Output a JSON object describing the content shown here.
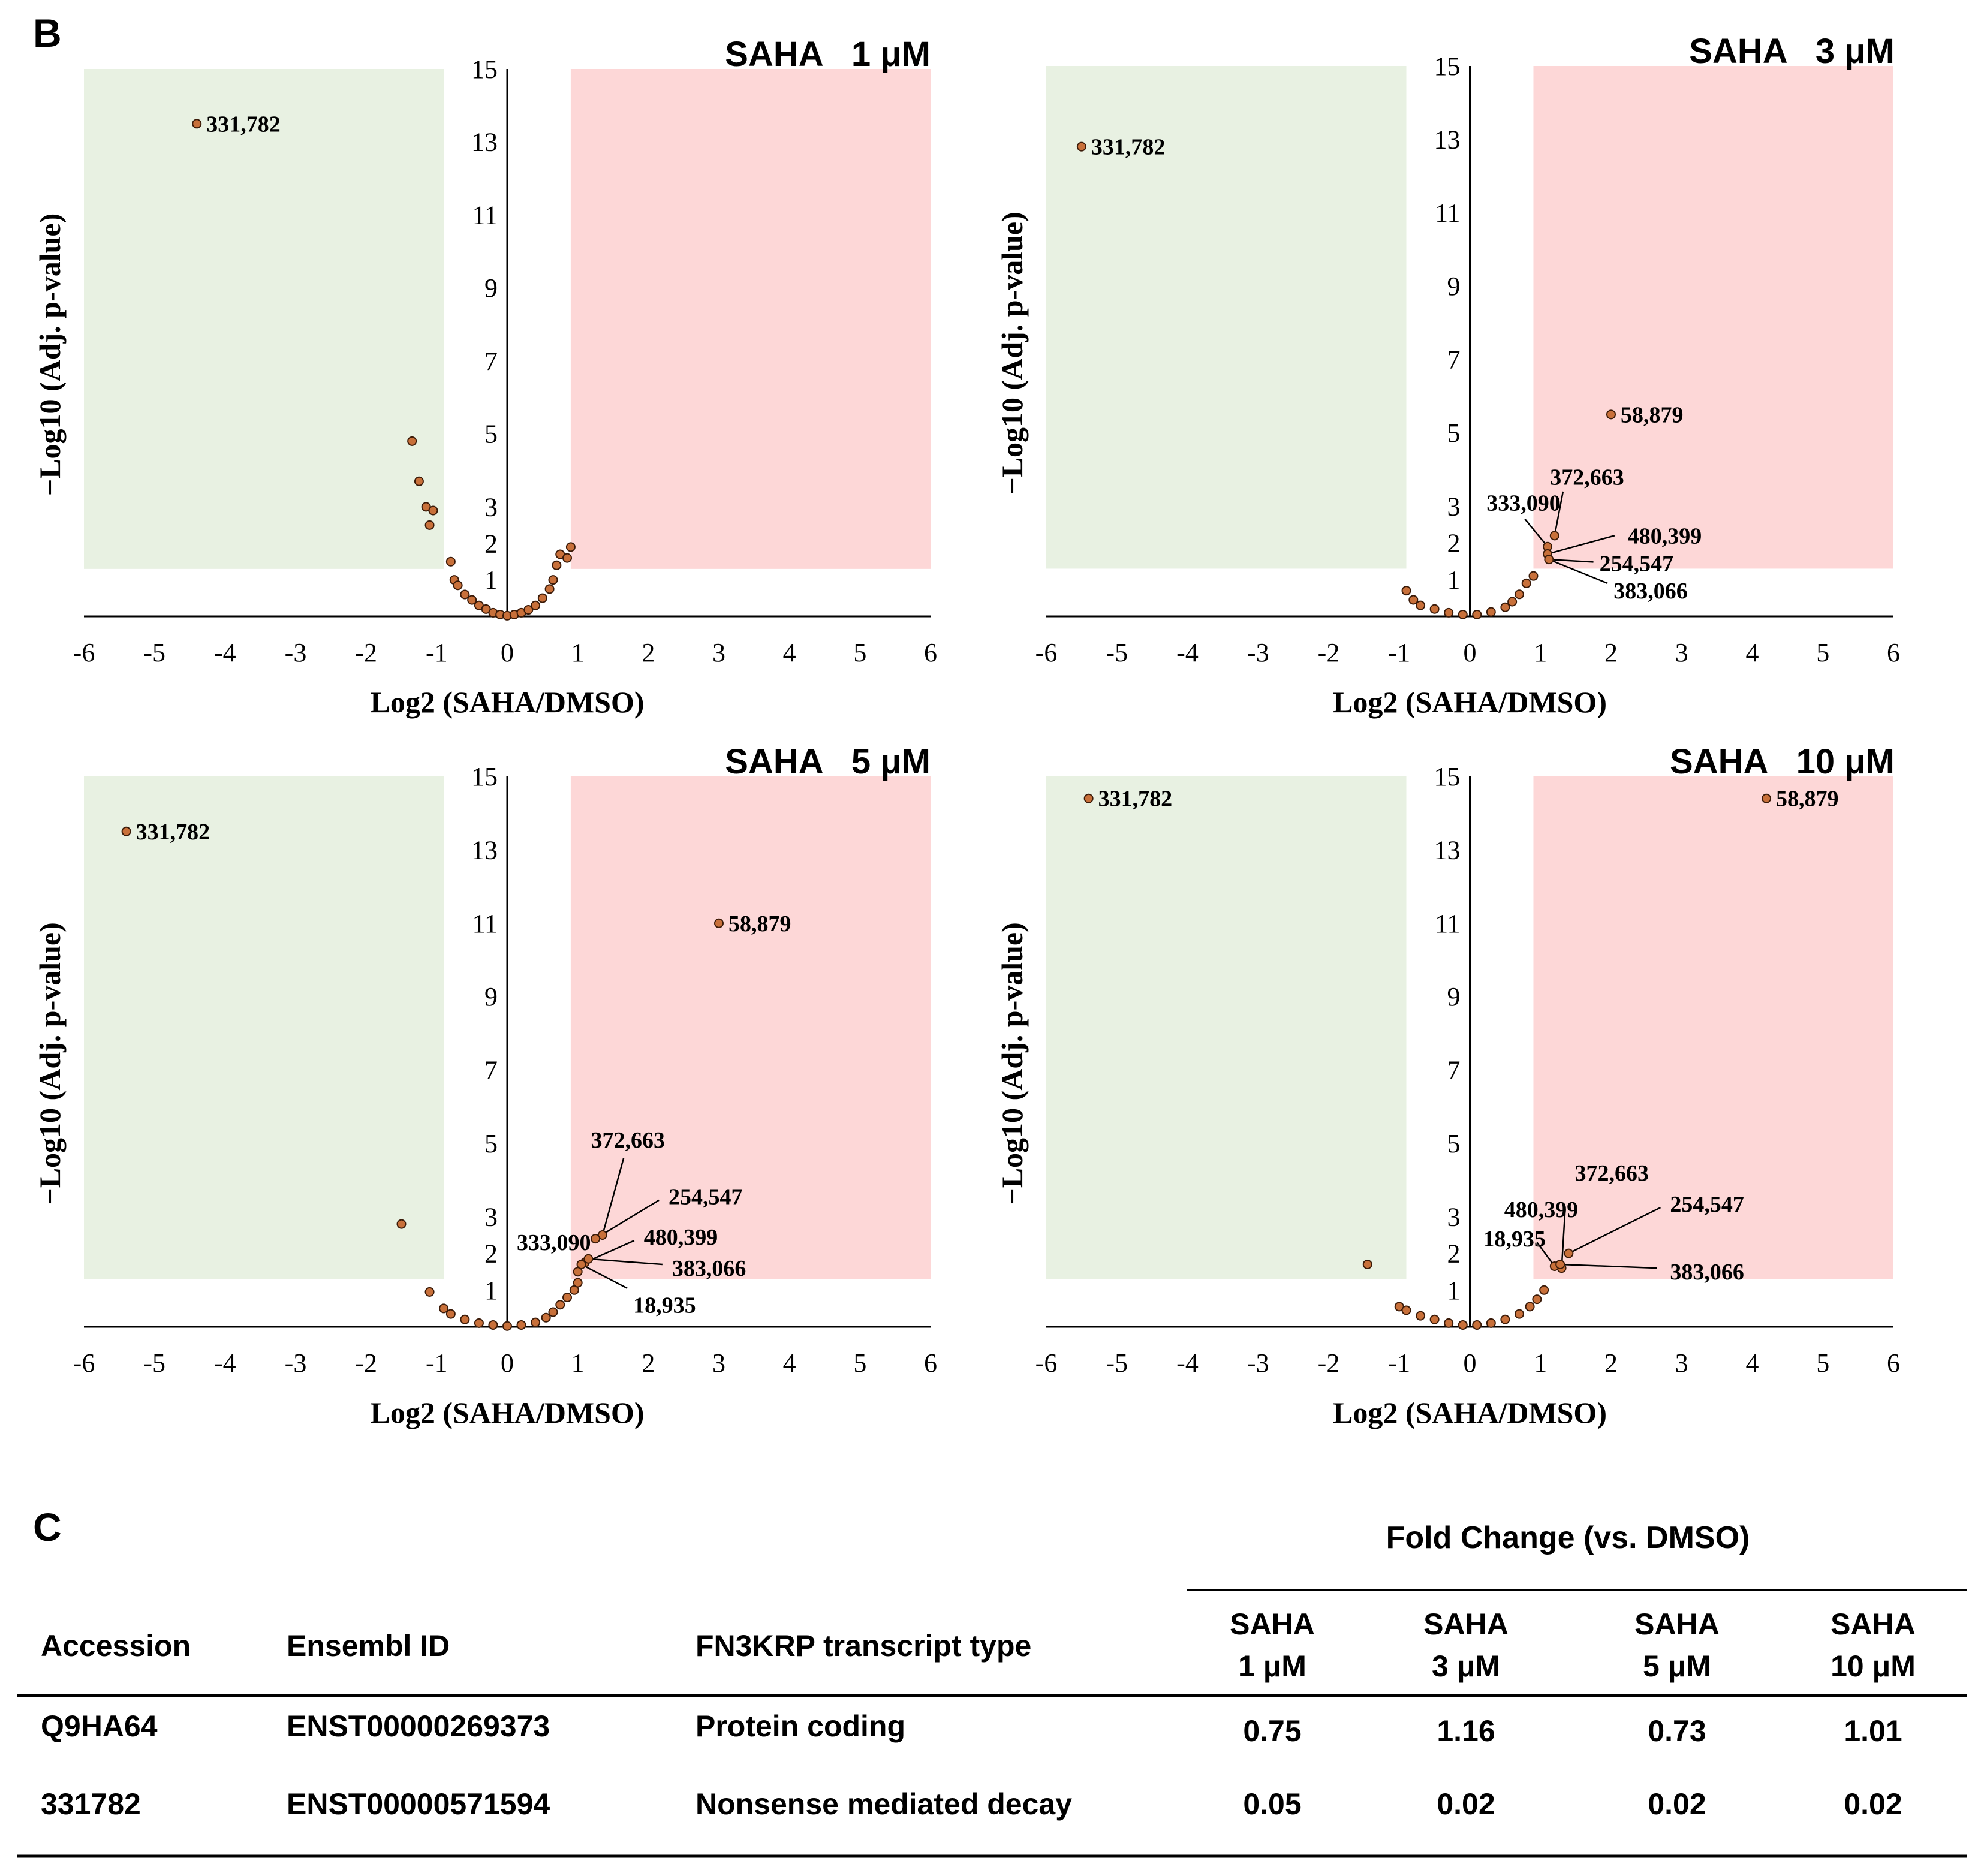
{
  "panel_b_label": "B",
  "panel_c_label": "C",
  "colors": {
    "down_region": "#e8f1e2",
    "up_region": "#fdd7d7",
    "point_fill": "#c8703a",
    "point_stroke": "#3a1a08",
    "axis": "#000000"
  },
  "chart_data": [
    {
      "type": "scatter",
      "title": "SAHA   1 μM",
      "xlabel": "Log2 (SAHA/DMSO)",
      "ylabel": "−Log10 (Adj. p-value)",
      "xlim": [
        -6,
        6
      ],
      "ylim": [
        0,
        15
      ],
      "xticks": [
        "-6",
        "-5",
        "-4",
        "-3",
        "-2",
        "-1",
        "0",
        "1",
        "2",
        "3",
        "4",
        "5",
        "6"
      ],
      "yticks": [
        "1",
        "2",
        "3",
        "5",
        "7",
        "9",
        "11",
        "13",
        "15"
      ],
      "down_region": {
        "x": [
          -6,
          -0.9
        ],
        "y": [
          1.3,
          15
        ]
      },
      "up_region": {
        "x": [
          0.9,
          6
        ],
        "y": [
          1.3,
          15
        ]
      },
      "points": [
        [
          -4.4,
          13.5
        ],
        [
          -1.35,
          4.8
        ],
        [
          -1.25,
          3.7
        ],
        [
          -1.15,
          3.0
        ],
        [
          -1.05,
          2.9
        ],
        [
          -1.1,
          2.5
        ],
        [
          -0.8,
          1.5
        ],
        [
          -0.75,
          1.0
        ],
        [
          -0.7,
          0.85
        ],
        [
          -0.6,
          0.6
        ],
        [
          -0.5,
          0.45
        ],
        [
          -0.4,
          0.3
        ],
        [
          -0.3,
          0.2
        ],
        [
          -0.2,
          0.1
        ],
        [
          -0.1,
          0.05
        ],
        [
          0,
          0.02
        ],
        [
          0.1,
          0.05
        ],
        [
          0.2,
          0.1
        ],
        [
          0.3,
          0.18
        ],
        [
          0.4,
          0.3
        ],
        [
          0.5,
          0.5
        ],
        [
          0.6,
          0.75
        ],
        [
          0.65,
          1.0
        ],
        [
          0.7,
          1.4
        ],
        [
          0.75,
          1.7
        ],
        [
          0.85,
          1.6
        ],
        [
          0.9,
          1.9
        ]
      ],
      "labels": [
        {
          "text": "331,782",
          "x": -4.4,
          "y": 13.5
        }
      ],
      "leaders": []
    },
    {
      "type": "scatter",
      "title": "SAHA   3 μM",
      "xlabel": "Log2 (SAHA/DMSO)",
      "ylabel": "−Log10 (Adj. p-value)",
      "xlim": [
        -6,
        6
      ],
      "ylim": [
        0,
        15
      ],
      "xticks": [
        "-6",
        "-5",
        "-4",
        "-3",
        "-2",
        "-1",
        "0",
        "1",
        "2",
        "3",
        "4",
        "5",
        "6"
      ],
      "yticks": [
        "1",
        "2",
        "3",
        "5",
        "7",
        "9",
        "11",
        "13",
        "15"
      ],
      "down_region": {
        "x": [
          -6,
          -0.9
        ],
        "y": [
          1.3,
          15
        ]
      },
      "up_region": {
        "x": [
          0.9,
          6
        ],
        "y": [
          1.3,
          15
        ]
      },
      "points": [
        [
          -5.5,
          12.8
        ],
        [
          2.0,
          5.5
        ],
        [
          1.2,
          2.2
        ],
        [
          1.1,
          1.9
        ],
        [
          1.1,
          1.7
        ],
        [
          1.12,
          1.55
        ],
        [
          -0.9,
          0.7
        ],
        [
          -0.8,
          0.45
        ],
        [
          -0.7,
          0.3
        ],
        [
          -0.5,
          0.2
        ],
        [
          -0.3,
          0.1
        ],
        [
          -0.1,
          0.05
        ],
        [
          0.1,
          0.05
        ],
        [
          0.3,
          0.12
        ],
        [
          0.5,
          0.25
        ],
        [
          0.6,
          0.4
        ],
        [
          0.7,
          0.6
        ],
        [
          0.8,
          0.9
        ],
        [
          0.9,
          1.1
        ]
      ],
      "labels": [
        {
          "text": "331,782",
          "x": -5.5,
          "y": 12.8
        },
        {
          "text": "58,879",
          "x": 2.0,
          "y": 5.5
        },
        {
          "text": "372,663",
          "x": 1.0,
          "y": 3.8
        },
        {
          "text": "333,090",
          "x": 0.1,
          "y": 3.1
        },
        {
          "text": "480,399",
          "x": 2.1,
          "y": 2.2
        },
        {
          "text": "254,547",
          "x": 1.7,
          "y": 1.45
        },
        {
          "text": "383,066",
          "x": 1.9,
          "y": 0.7
        }
      ],
      "leaders": [
        [
          1.2,
          2.2,
          1.32,
          3.4
        ],
        [
          1.1,
          1.9,
          0.78,
          2.65
        ],
        [
          1.1,
          1.7,
          2.05,
          2.2
        ],
        [
          1.12,
          1.55,
          1.75,
          1.48
        ],
        [
          1.12,
          1.55,
          1.95,
          0.9
        ]
      ]
    },
    {
      "type": "scatter",
      "title": "SAHA   5 μM",
      "xlabel": "Log2 (SAHA/DMSO)",
      "ylabel": "−Log10 (Adj. p-value)",
      "xlim": [
        -6,
        6
      ],
      "ylim": [
        0,
        15
      ],
      "xticks": [
        "-6",
        "-5",
        "-4",
        "-3",
        "-2",
        "-1",
        "0",
        "1",
        "2",
        "3",
        "4",
        "5",
        "6"
      ],
      "yticks": [
        "1",
        "2",
        "3",
        "5",
        "7",
        "9",
        "11",
        "13",
        "15"
      ],
      "down_region": {
        "x": [
          -6,
          -0.9
        ],
        "y": [
          1.3,
          15
        ]
      },
      "up_region": {
        "x": [
          0.9,
          6
        ],
        "y": [
          1.3,
          15
        ]
      },
      "points": [
        [
          -5.4,
          13.5
        ],
        [
          3.0,
          11.0
        ],
        [
          -1.5,
          2.8
        ],
        [
          -1.1,
          0.95
        ],
        [
          1.35,
          2.5
        ],
        [
          1.25,
          2.4
        ],
        [
          1.1,
          1.75
        ],
        [
          1.0,
          1.5
        ],
        [
          1.05,
          1.7
        ],
        [
          1.15,
          1.85
        ],
        [
          -0.9,
          0.5
        ],
        [
          -0.8,
          0.35
        ],
        [
          -0.6,
          0.2
        ],
        [
          -0.4,
          0.1
        ],
        [
          -0.2,
          0.05
        ],
        [
          0,
          0.02
        ],
        [
          0.2,
          0.05
        ],
        [
          0.4,
          0.12
        ],
        [
          0.55,
          0.25
        ],
        [
          0.65,
          0.4
        ],
        [
          0.75,
          0.6
        ],
        [
          0.85,
          0.8
        ],
        [
          0.95,
          1.0
        ],
        [
          1.0,
          1.2
        ]
      ],
      "labels": [
        {
          "text": "331,782",
          "x": -5.4,
          "y": 13.5
        },
        {
          "text": "58,879",
          "x": 3.0,
          "y": 11.0
        },
        {
          "text": "372,663",
          "x": 1.05,
          "y": 5.1
        },
        {
          "text": "254,547",
          "x": 2.15,
          "y": 3.55
        },
        {
          "text": "333,090",
          "x": 0.0,
          "y": 2.3
        },
        {
          "text": "480,399",
          "x": 1.8,
          "y": 2.45
        },
        {
          "text": "383,066",
          "x": 2.2,
          "y": 1.6
        },
        {
          "text": "18,935",
          "x": 1.65,
          "y": 0.6
        }
      ],
      "leaders": [
        [
          1.35,
          2.5,
          1.65,
          4.6
        ],
        [
          1.25,
          2.4,
          2.15,
          3.45
        ],
        [
          1.1,
          1.75,
          1.8,
          2.35
        ],
        [
          1.15,
          1.85,
          2.2,
          1.7
        ],
        [
          1.05,
          1.7,
          1.7,
          1.05
        ]
      ]
    },
    {
      "type": "scatter",
      "title": "SAHA   10 μM",
      "xlabel": "Log2 (SAHA/DMSO)",
      "ylabel": "−Log10 (Adj. p-value)",
      "xlim": [
        -6,
        6
      ],
      "ylim": [
        0,
        15
      ],
      "xticks": [
        "-6",
        "-5",
        "-4",
        "-3",
        "-2",
        "-1",
        "0",
        "1",
        "2",
        "3",
        "4",
        "5",
        "6"
      ],
      "yticks": [
        "1",
        "2",
        "3",
        "5",
        "7",
        "9",
        "11",
        "13",
        "15"
      ],
      "down_region": {
        "x": [
          -6,
          -0.9
        ],
        "y": [
          1.3,
          15
        ]
      },
      "up_region": {
        "x": [
          0.9,
          6
        ],
        "y": [
          1.3,
          15
        ]
      },
      "points": [
        [
          -5.4,
          14.4
        ],
        [
          4.2,
          14.4
        ],
        [
          -1.45,
          1.7
        ],
        [
          1.4,
          2.0
        ],
        [
          1.3,
          1.6
        ],
        [
          1.2,
          1.65
        ],
        [
          1.28,
          1.7
        ],
        [
          -1.0,
          0.55
        ],
        [
          -0.9,
          0.45
        ],
        [
          -0.7,
          0.3
        ],
        [
          -0.5,
          0.2
        ],
        [
          -0.3,
          0.1
        ],
        [
          -0.1,
          0.05
        ],
        [
          0.1,
          0.05
        ],
        [
          0.3,
          0.1
        ],
        [
          0.5,
          0.2
        ],
        [
          0.7,
          0.35
        ],
        [
          0.85,
          0.55
        ],
        [
          0.95,
          0.75
        ],
        [
          1.05,
          1.0
        ]
      ],
      "labels": [
        {
          "text": "331,782",
          "x": -5.4,
          "y": 14.4
        },
        {
          "text": "58,879",
          "x": 4.2,
          "y": 14.4
        },
        {
          "text": "372,663",
          "x": 1.35,
          "y": 4.2
        },
        {
          "text": "480,399",
          "x": 0.35,
          "y": 3.2
        },
        {
          "text": "254,547",
          "x": 2.7,
          "y": 3.35
        },
        {
          "text": "18,935",
          "x": 0.05,
          "y": 2.4
        },
        {
          "text": "383,066",
          "x": 2.7,
          "y": 1.5
        }
      ],
      "leaders": [
        [
          1.3,
          1.6,
          1.35,
          3.2
        ],
        [
          1.4,
          2.0,
          2.7,
          3.25
        ],
        [
          1.2,
          1.65,
          0.95,
          2.3
        ],
        [
          1.28,
          1.7,
          2.65,
          1.6
        ]
      ]
    }
  ],
  "table": {
    "group_header": "Fold Change  (vs. DMSO)",
    "headers": [
      "Accession",
      "Ensembl ID",
      "FN3KRP transcript type"
    ],
    "col_headers": [
      {
        "line1": "SAHA",
        "line2": "1 μM"
      },
      {
        "line1": "SAHA",
        "line2": "3 μM"
      },
      {
        "line1": "SAHA",
        "line2": "5 μM"
      },
      {
        "line1": "SAHA",
        "line2": "10 μM"
      }
    ],
    "rows": [
      {
        "accession": "Q9HA64",
        "ensembl": "ENST00000269373",
        "type": "Protein coding",
        "values": [
          "0.75",
          "1.16",
          "0.73",
          "1.01"
        ]
      },
      {
        "accession": "331782",
        "ensembl": "ENST00000571594",
        "type": "Nonsense mediated decay",
        "values": [
          "0.05",
          "0.02",
          "0.02",
          "0.02"
        ]
      }
    ]
  }
}
